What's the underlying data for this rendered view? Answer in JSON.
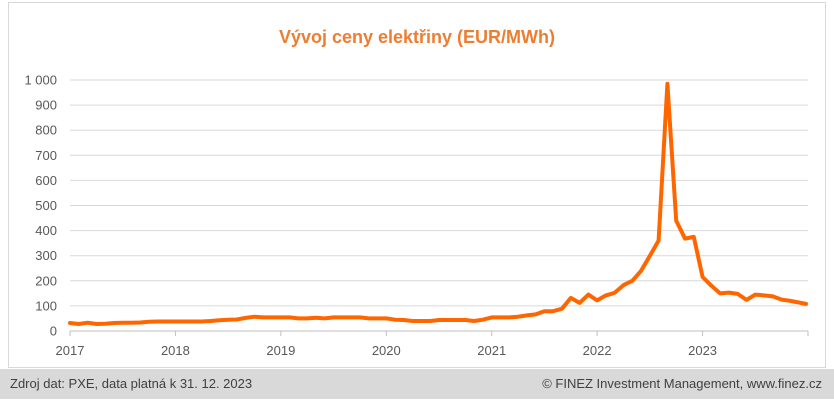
{
  "chart_data": {
    "type": "line",
    "title": "Vývoj ceny elektřiny (EUR/MWh)",
    "xlabel": "",
    "ylabel": "",
    "ylim": [
      0,
      1000
    ],
    "y_ticks": [
      0,
      100,
      200,
      300,
      400,
      500,
      600,
      700,
      800,
      900,
      1000
    ],
    "y_tick_labels": [
      "0",
      "100",
      "200",
      "300",
      "400",
      "500",
      "600",
      "700",
      "800",
      "900",
      "1 000"
    ],
    "x_tick_labels": [
      "2017",
      "2018",
      "2019",
      "2020",
      "2021",
      "2022",
      "2023"
    ],
    "grid": true,
    "color": "#FF6600",
    "series": [
      {
        "name": "",
        "x": [
          "2017-01",
          "2017-02",
          "2017-03",
          "2017-04",
          "2017-05",
          "2017-06",
          "2017-07",
          "2017-08",
          "2017-09",
          "2017-10",
          "2017-11",
          "2017-12",
          "2018-01",
          "2018-02",
          "2018-03",
          "2018-04",
          "2018-05",
          "2018-06",
          "2018-07",
          "2018-08",
          "2018-09",
          "2018-10",
          "2018-11",
          "2018-12",
          "2019-01",
          "2019-02",
          "2019-03",
          "2019-04",
          "2019-05",
          "2019-06",
          "2019-07",
          "2019-08",
          "2019-09",
          "2019-10",
          "2019-11",
          "2019-12",
          "2020-01",
          "2020-02",
          "2020-03",
          "2020-04",
          "2020-05",
          "2020-06",
          "2020-07",
          "2020-08",
          "2020-09",
          "2020-10",
          "2020-11",
          "2020-12",
          "2021-01",
          "2021-02",
          "2021-03",
          "2021-04",
          "2021-05",
          "2021-06",
          "2021-07",
          "2021-08",
          "2021-09",
          "2021-10",
          "2021-11",
          "2021-12",
          "2022-01",
          "2022-02",
          "2022-03",
          "2022-04",
          "2022-05",
          "2022-06",
          "2022-07",
          "2022-08",
          "2022-09",
          "2022-10",
          "2022-11",
          "2022-12",
          "2023-01",
          "2023-02",
          "2023-03",
          "2023-04",
          "2023-05",
          "2023-06",
          "2023-07",
          "2023-08",
          "2023-09",
          "2023-10",
          "2023-11",
          "2023-12"
        ],
        "values": [
          32,
          28,
          33,
          28,
          29,
          32,
          33,
          33,
          34,
          37,
          38,
          38,
          38,
          38,
          38,
          38,
          40,
          43,
          45,
          46,
          52,
          57,
          54,
          54,
          54,
          54,
          50,
          50,
          53,
          50,
          54,
          54,
          54,
          54,
          50,
          50,
          50,
          45,
          44,
          40,
          40,
          40,
          44,
          44,
          44,
          44,
          40,
          45,
          54,
          54,
          54,
          57,
          62,
          66,
          79,
          79,
          89,
          132,
          112,
          145,
          122,
          142,
          152,
          183,
          200,
          240,
          300,
          360,
          985,
          440,
          368,
          375,
          215,
          180,
          150,
          153,
          148,
          124,
          145,
          142,
          138,
          125,
          120,
          108
        ]
      }
    ]
  },
  "footer": {
    "source": "Zdroj dat: PXE, data platná k 31. 12. 2023",
    "copyright": "© FINEZ Investment Management, www.finez.cz"
  }
}
